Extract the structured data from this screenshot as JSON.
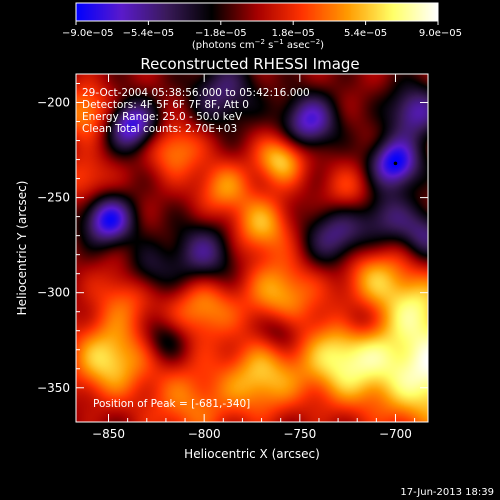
{
  "chart_data": {
    "type": "heatmap",
    "title": "Reconstructed RHESSI Image",
    "xlabel": "Heliocentric X (arcsec)",
    "ylabel": "Heliocentric Y (arcsec)",
    "xlim": [
      -867,
      -683
    ],
    "ylim": [
      -368,
      -185
    ],
    "x_ticks": [
      -850,
      -800,
      -750,
      -700
    ],
    "x_tick_labels": [
      "-850",
      "-800",
      "-750",
      "-700"
    ],
    "y_ticks": [
      -350,
      -300,
      -250,
      -200
    ],
    "y_tick_labels": [
      "-350",
      "-300",
      "-250",
      "-200"
    ],
    "colorbar": {
      "range": [
        -9e-05,
        9e-05
      ],
      "tick_labels": [
        "-9.0e-05",
        "-5.4e-05",
        "-1.8e-05",
        "1.8e-05",
        "5.4e-05",
        "9.0e-05"
      ],
      "unit_parts": [
        "(photons cm",
        "-2",
        " s",
        "-1",
        " asec",
        "-2",
        ")"
      ],
      "colormap": [
        "#0000ff",
        "#5a1acb",
        "#3a1a5a",
        "#000000",
        "#a50000",
        "#ff3300",
        "#ff9a00",
        "#ffff66",
        "#ffffff"
      ]
    },
    "info_lines": [
      "29-Oct-2004 05:38:56.000 to 05:42:16.000",
      "Detectors: 4F 5F 6F 7F 8F, Att 0",
      "Energy Range: 25.0 - 50.0 keV",
      "Clean    Total counts: 2.70E+03"
    ],
    "peak_label": "Position of Peak = [-681,-340]",
    "peak": [
      -681,
      -340
    ],
    "peak_value": 9e-05,
    "sources": [
      {
        "x": -681,
        "y": -340,
        "amp": 1.0,
        "sigma": 22
      },
      {
        "x": -727,
        "y": -335,
        "amp": 0.8,
        "sigma": 16
      },
      {
        "x": -770,
        "y": -345,
        "amp": 0.65,
        "sigma": 14
      },
      {
        "x": -808,
        "y": -358,
        "amp": 0.45,
        "sigma": 16
      },
      {
        "x": -850,
        "y": -335,
        "amp": 0.75,
        "sigma": 14
      },
      {
        "x": -840,
        "y": -300,
        "amp": 0.45,
        "sigma": 12
      },
      {
        "x": -800,
        "y": -308,
        "amp": 0.55,
        "sigma": 12
      },
      {
        "x": -760,
        "y": -300,
        "amp": 0.6,
        "sigma": 13
      },
      {
        "x": -712,
        "y": -290,
        "amp": 0.55,
        "sigma": 12
      },
      {
        "x": -770,
        "y": -265,
        "amp": 0.6,
        "sigma": 11
      },
      {
        "x": -790,
        "y": -245,
        "amp": 0.5,
        "sigma": 10
      },
      {
        "x": -760,
        "y": -230,
        "amp": 0.7,
        "sigma": 9
      },
      {
        "x": -815,
        "y": -225,
        "amp": 0.5,
        "sigma": 10
      },
      {
        "x": -862,
        "y": -205,
        "amp": 0.55,
        "sigma": 10
      },
      {
        "x": -862,
        "y": -240,
        "amp": 0.35,
        "sigma": 9
      },
      {
        "x": -725,
        "y": -248,
        "amp": 0.35,
        "sigma": 10
      },
      {
        "x": -690,
        "y": -305,
        "amp": 0.5,
        "sigma": 12
      },
      {
        "x": -700,
        "y": -232,
        "amp": -0.95,
        "sigma": 9
      },
      {
        "x": -690,
        "y": -205,
        "amp": -0.65,
        "sigma": 10
      },
      {
        "x": -838,
        "y": -212,
        "amp": -0.85,
        "sigma": 9
      },
      {
        "x": -850,
        "y": -262,
        "amp": -0.9,
        "sigma": 9
      },
      {
        "x": -745,
        "y": -210,
        "amp": -0.75,
        "sigma": 10
      },
      {
        "x": -800,
        "y": -280,
        "amp": -0.55,
        "sigma": 12
      },
      {
        "x": -830,
        "y": -290,
        "amp": -0.45,
        "sigma": 10
      },
      {
        "x": -730,
        "y": -270,
        "amp": -0.6,
        "sigma": 12
      },
      {
        "x": -705,
        "y": -260,
        "amp": -0.45,
        "sigma": 10
      },
      {
        "x": -790,
        "y": -195,
        "amp": -0.5,
        "sigma": 12
      },
      {
        "x": -760,
        "y": -320,
        "amp": -0.35,
        "sigma": 8
      },
      {
        "x": -720,
        "y": -315,
        "amp": -0.35,
        "sigma": 8
      },
      {
        "x": -685,
        "y": -270,
        "amp": -0.5,
        "sigma": 9
      },
      {
        "x": -820,
        "y": -325,
        "amp": -0.35,
        "sigma": 8
      }
    ]
  },
  "footer": {
    "date": "17-Jun-2013 18:39"
  }
}
